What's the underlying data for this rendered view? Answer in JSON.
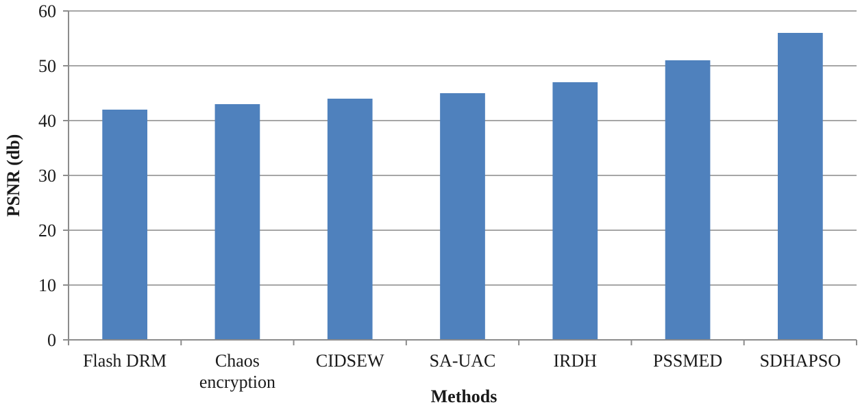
{
  "chart_data": {
    "type": "bar",
    "categories": [
      "Flash DRM",
      "Chaos encryption",
      "CIDSEW",
      "SA-UAC",
      "IRDH",
      "PSSMED",
      "SDHAPSO"
    ],
    "category_lines": [
      [
        "Flash DRM"
      ],
      [
        "Chaos",
        "encryption"
      ],
      [
        "CIDSEW"
      ],
      [
        "SA-UAC"
      ],
      [
        "IRDH"
      ],
      [
        "PSSMED"
      ],
      [
        "SDHAPSO"
      ]
    ],
    "values": [
      42,
      43,
      44,
      45,
      47,
      51,
      56
    ],
    "xlabel": "Methods",
    "ylabel": "PSNR (db)",
    "ylim": [
      0,
      60
    ],
    "yticks": [
      0,
      10,
      20,
      30,
      40,
      50,
      60
    ],
    "grid": true,
    "colors": {
      "bar": "#4f81bd",
      "grid": "#a6a6a6",
      "axis": "#8c8c8c"
    }
  }
}
